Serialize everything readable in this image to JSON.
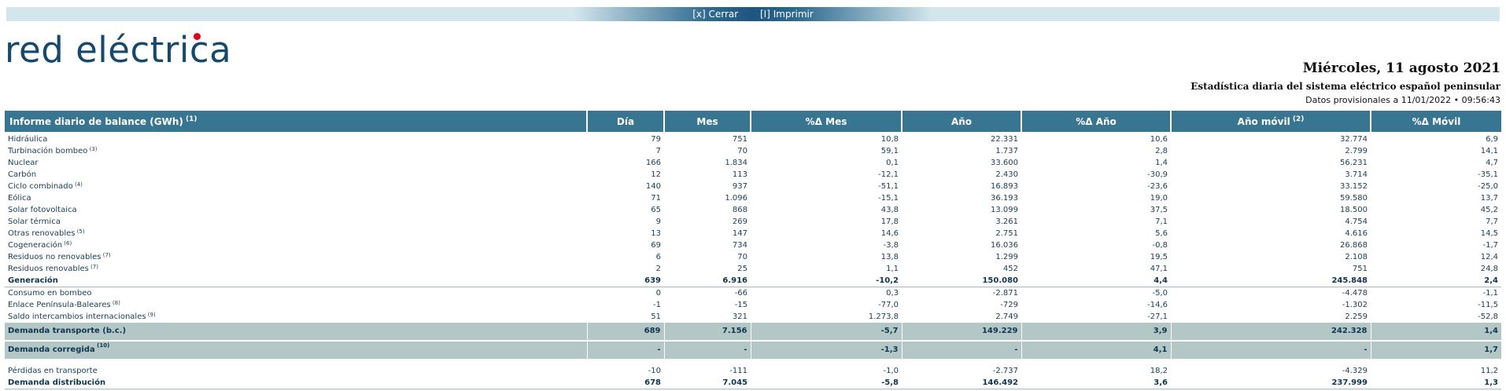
{
  "toolbar": {
    "close_label": "[x] Cerrar",
    "print_label": "[I] Imprimir"
  },
  "brand": {
    "logo_text": "red eléctrica",
    "accent": "#e2001a"
  },
  "header": {
    "date": "Miércoles, 11 agosto 2021",
    "subtitle": "Estadística diaria del sistema eléctrico español peninsular",
    "provisional": "Datos provisionales a 11/01/2022 • 09:56:43"
  },
  "table": {
    "columns": [
      {
        "label": "Informe diario de balance (GWh)",
        "note": "(1)"
      },
      {
        "label": "Día",
        "note": ""
      },
      {
        "label": "Mes",
        "note": ""
      },
      {
        "label": "%Δ Mes",
        "note": ""
      },
      {
        "label": "Año",
        "note": ""
      },
      {
        "label": "%Δ Año",
        "note": ""
      },
      {
        "label": "Año móvil",
        "note": "(2)"
      },
      {
        "label": "%Δ Móvil",
        "note": ""
      }
    ],
    "rows": [
      {
        "label": "Hidráulica",
        "note": "",
        "values": [
          "79",
          "751",
          "10,8",
          "22.331",
          "10,6",
          "32.774",
          "6,9"
        ]
      },
      {
        "label": "Turbinación bombeo",
        "note": "(3)",
        "values": [
          "7",
          "70",
          "59,1",
          "1.737",
          "2,8",
          "2.799",
          "14,1"
        ]
      },
      {
        "label": "Nuclear",
        "note": "",
        "values": [
          "166",
          "1.834",
          "0,1",
          "33.600",
          "1,4",
          "56.231",
          "4,7"
        ]
      },
      {
        "label": "Carbón",
        "note": "",
        "values": [
          "12",
          "113",
          "-12,1",
          "2.430",
          "-30,9",
          "3.714",
          "-35,1"
        ]
      },
      {
        "label": "Ciclo combinado",
        "note": "(4)",
        "values": [
          "140",
          "937",
          "-51,1",
          "16.893",
          "-23,6",
          "33.152",
          "-25,0"
        ]
      },
      {
        "label": "Eólica",
        "note": "",
        "values": [
          "71",
          "1.096",
          "-15,1",
          "36.193",
          "19,0",
          "59.580",
          "13,7"
        ]
      },
      {
        "label": "Solar fotovoltaica",
        "note": "",
        "values": [
          "65",
          "868",
          "43,8",
          "13.099",
          "37,5",
          "18.500",
          "45,2"
        ]
      },
      {
        "label": "Solar térmica",
        "note": "",
        "values": [
          "9",
          "269",
          "17,8",
          "3.261",
          "7,1",
          "4.754",
          "7,7"
        ]
      },
      {
        "label": "Otras renovables",
        "note": "(5)",
        "values": [
          "13",
          "147",
          "14,6",
          "2.751",
          "5,6",
          "4.616",
          "14,5"
        ]
      },
      {
        "label": "Cogeneración",
        "note": "(6)",
        "values": [
          "69",
          "734",
          "-3,8",
          "16.036",
          "-0,8",
          "26.868",
          "-1,7"
        ]
      },
      {
        "label": "Residuos no renovables",
        "note": "(7)",
        "values": [
          "6",
          "70",
          "13,8",
          "1.299",
          "19,5",
          "2.108",
          "12,4"
        ]
      },
      {
        "label": "Residuos renovables",
        "note": "(7)",
        "values": [
          "2",
          "25",
          "1,1",
          "452",
          "47,1",
          "751",
          "24,8"
        ]
      },
      {
        "label": "Generación",
        "note": "",
        "values": [
          "639",
          "6.916",
          "-10,2",
          "150.080",
          "4,4",
          "245.848",
          "2,4"
        ]
      },
      {
        "label": "Consumo en bombeo",
        "note": "",
        "values": [
          "0",
          "-66",
          "0,3",
          "-2.871",
          "-5,0",
          "-4.478",
          "-1,1"
        ]
      },
      {
        "label": "Enlace Península-Baleares",
        "note": "(8)",
        "values": [
          "-1",
          "-15",
          "-77,0",
          "-729",
          "-14,6",
          "-1.302",
          "-11,5"
        ]
      },
      {
        "label": "Saldo intercambios internacionales",
        "note": "(9)",
        "values": [
          "51",
          "321",
          "1.273,8",
          "2.749",
          "-27,1",
          "2.259",
          "-52,8"
        ]
      },
      {
        "label": "Demanda transporte (b.c.)",
        "note": "",
        "values": [
          "689",
          "7.156",
          "-5,7",
          "149.229",
          "3,9",
          "242.328",
          "1,4"
        ]
      },
      {
        "label": "Demanda corregida",
        "note": "(10)",
        "values": [
          "-",
          "-",
          "-1,3",
          "-",
          "4,1",
          "-",
          "1,7"
        ]
      },
      {
        "label": "Pérdidas en transporte",
        "note": "",
        "values": [
          "-10",
          "-111",
          "-1,0",
          "-2.737",
          "18,2",
          "-4.329",
          "11,2"
        ]
      },
      {
        "label": "Demanda distribución",
        "note": "",
        "values": [
          "678",
          "7.045",
          "-5,8",
          "146.492",
          "3,6",
          "237.999",
          "1,3"
        ]
      }
    ]
  }
}
